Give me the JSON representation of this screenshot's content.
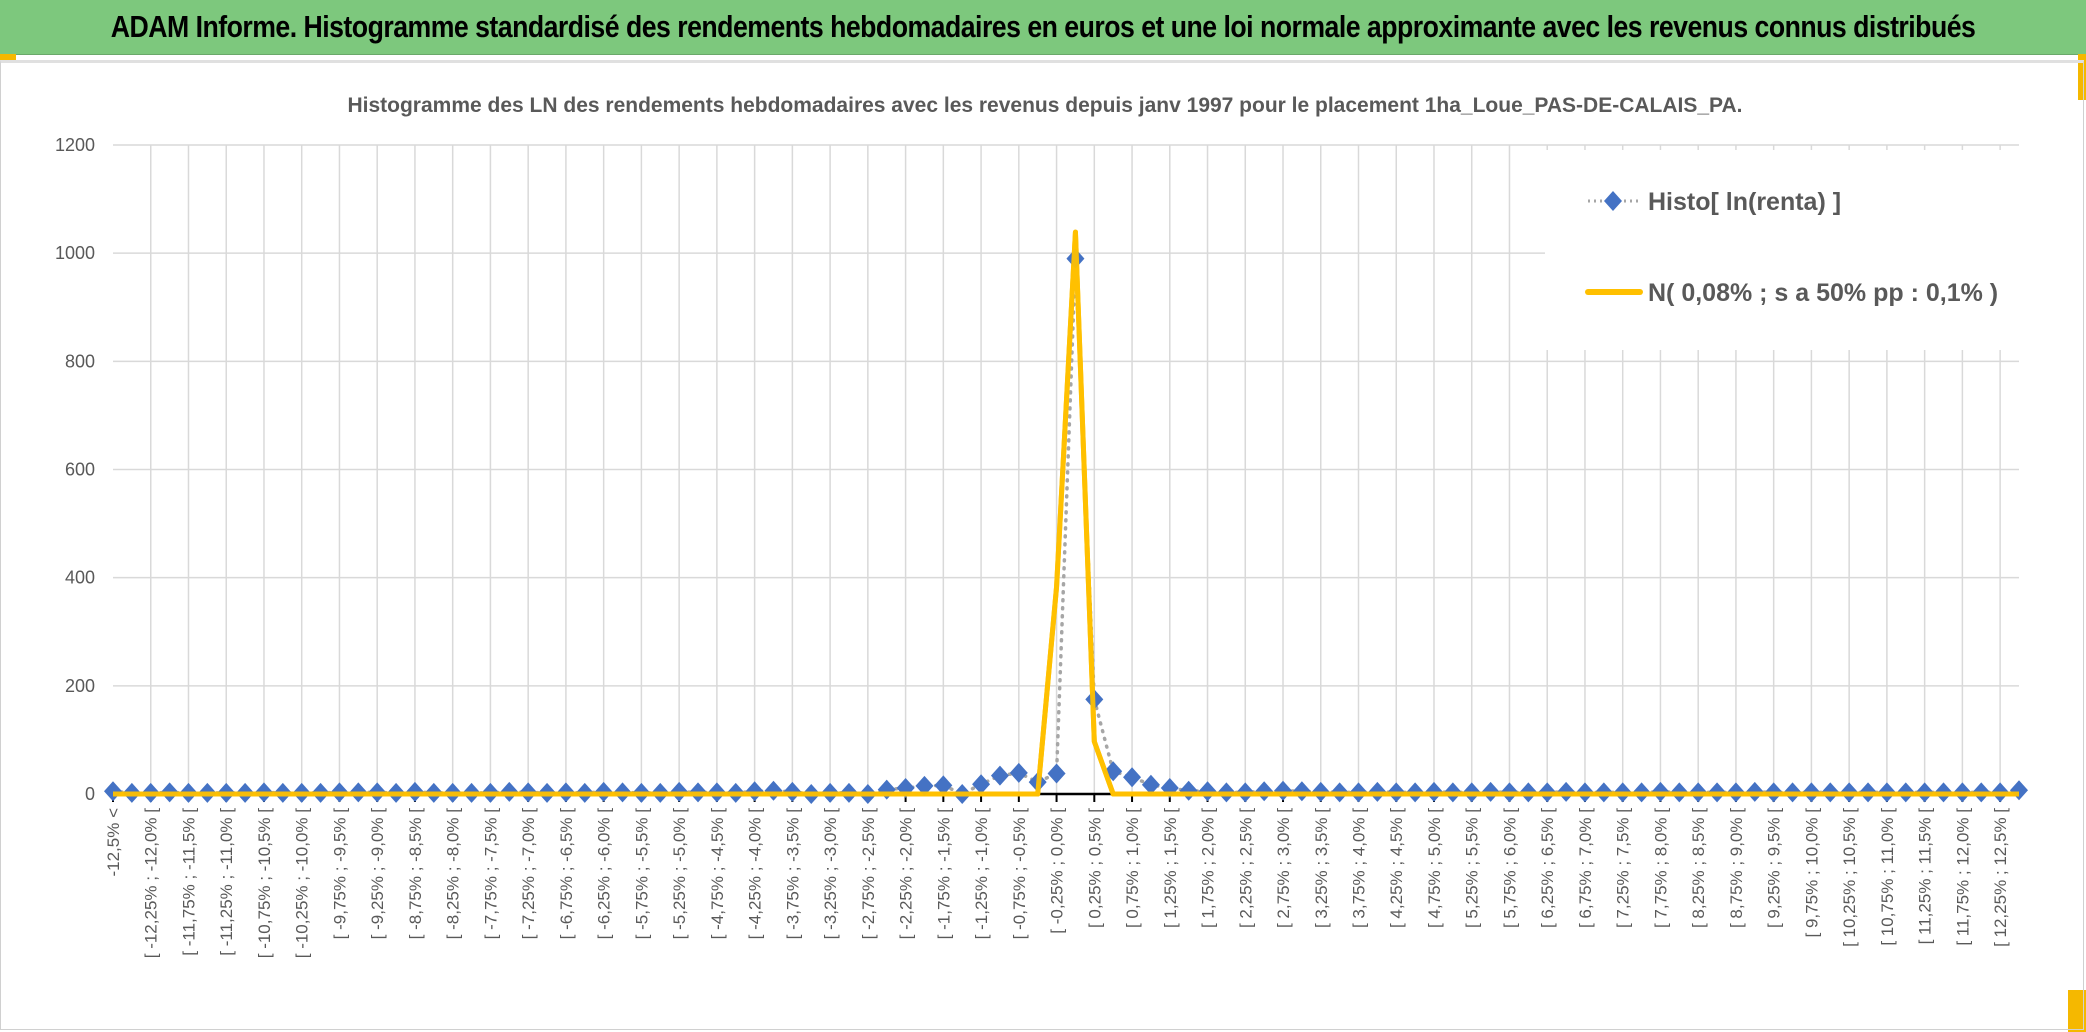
{
  "banner": {
    "title": "ADAM Informe. Histogramme standardisé des rendements hebdomadaires en euros et une loi normale approximante avec les revenus connus distribués"
  },
  "colors": {
    "banner_bg": "#7dc87d",
    "histo": "#4472c4",
    "normal": "#ffc000",
    "grid": "#d9d9d9",
    "text": "#595959",
    "accent": "#f5b800"
  },
  "chart_data": {
    "type": "line",
    "title": "Histogramme des LN des rendements hebdomadaires avec les revenus depuis janv 1997 pour le placement 1ha_Loue_PAS-DE-CALAIS_PA.",
    "xlabel": "",
    "ylabel": "",
    "ylim": [
      0,
      1200
    ],
    "yticks": [
      "0",
      "200",
      "400",
      "600",
      "800",
      "1000",
      "1200"
    ],
    "grid": true,
    "legend_position": "top-right",
    "x_tick_labels": [
      "-12,5% <",
      "[ -12,25% ; -12,0% [",
      "[ -11,75% ; -11,5% [",
      "[ -11,25% ; -11,0% [",
      "[ -10,75% ; -10,5% [",
      "[ -10,25% ; -10,0% [",
      "[ -9,75% ; -9,5% [",
      "[ -9,25% ; -9,0% [",
      "[ -8,75% ; -8,5% [",
      "[ -8,25% ; -8,0% [",
      "[ -7,75% ; -7,5% [",
      "[ -7,25% ; -7,0% [",
      "[ -6,75% ; -6,5% [",
      "[ -6,25% ; -6,0% [",
      "[ -5,75% ; -5,5% [",
      "[ -5,25% ; -5,0% [",
      "[ -4,75% ; -4,5% [",
      "[ -4,25% ; -4,0% [",
      "[ -3,75% ; -3,5% [",
      "[ -3,25% ; -3,0% [",
      "[ -2,75% ; -2,5% [",
      "[ -2,25% ; -2,0% [",
      "[ -1,75% ; -1,5% [",
      "[ -1,25% ; -1,0% [",
      "[ -0,75% ; -0,5% [",
      "[ -0,25% ; 0,0% [",
      "[ 0,25% ; 0,5% [",
      "[ 0,75% ; 1,0% [",
      "[ 1,25% ; 1,5% [",
      "[ 1,75% ; 2,0% [",
      "[ 2,25% ; 2,5% [",
      "[ 2,75% ; 3,0% [",
      "[ 3,25% ; 3,5% [",
      "[ 3,75% ; 4,0% [",
      "[ 4,25% ; 4,5% [",
      "[ 4,75% ; 5,0% [",
      "[ 5,25% ; 5,5% [",
      "[ 5,75% ; 6,0% [",
      "[ 6,25% ; 6,5% [",
      "[ 6,75% ; 7,0% [",
      "[ 7,25% ; 7,5% [",
      "[ 7,75% ; 8,0% [",
      "[ 8,25% ; 8,5% [",
      "[ 8,75% ; 9,0% [",
      "[ 9,25% ; 9,5% [",
      "[ 9,75% ; 10,0% [",
      "[ 10,25% ; 10,5% [",
      "[ 10,75% ; 11,0% [",
      "[ 11,25% ; 11,5% [",
      "[ 11,75% ; 12,0% [",
      "[ 12,25% ; 12,5% ["
    ],
    "series": [
      {
        "name": "Histo[ ln(renta) ]",
        "style": "dotted-line-diamond-markers",
        "values": [
          5,
          2,
          2,
          3,
          2,
          2,
          2,
          2,
          3,
          2,
          2,
          2,
          3,
          3,
          3,
          2,
          4,
          2,
          2,
          2,
          2,
          4,
          3,
          2,
          3,
          2,
          4,
          3,
          2,
          2,
          4,
          3,
          3,
          2,
          5,
          6,
          4,
          0,
          2,
          2,
          0,
          8,
          11,
          15,
          16,
          0,
          18,
          34,
          39,
          22,
          38,
          990,
          175,
          42,
          31,
          17,
          11,
          6,
          5,
          3,
          3,
          5,
          6,
          5,
          4,
          3,
          3,
          4,
          3,
          3,
          4,
          3,
          3,
          4,
          3,
          3,
          3,
          4,
          3,
          3,
          3,
          3,
          4,
          3,
          3,
          3,
          3,
          4,
          3,
          3,
          3,
          3,
          3,
          3,
          3,
          3,
          3,
          3,
          3,
          3,
          3,
          7
        ]
      },
      {
        "name": "N( 0,08% ; s a 50% pp : 0,1% )",
        "style": "solid-line",
        "values": [
          0,
          0,
          0,
          0,
          0,
          0,
          0,
          0,
          0,
          0,
          0,
          0,
          0,
          0,
          0,
          0,
          0,
          0,
          0,
          0,
          0,
          0,
          0,
          0,
          0,
          0,
          0,
          0,
          0,
          0,
          0,
          0,
          0,
          0,
          0,
          0,
          0,
          0,
          0,
          0,
          0,
          0,
          0,
          0,
          0,
          0,
          0,
          0,
          0,
          0,
          383,
          1039,
          97,
          0,
          0,
          0,
          0,
          0,
          0,
          0,
          0,
          0,
          0,
          0,
          0,
          0,
          0,
          0,
          0,
          0,
          0,
          0,
          0,
          0,
          0,
          0,
          0,
          0,
          0,
          0,
          0,
          0,
          0,
          0,
          0,
          0,
          0,
          0,
          0,
          0,
          0,
          0,
          0,
          0,
          0,
          0,
          0,
          0,
          0,
          0,
          0,
          0
        ]
      }
    ]
  }
}
